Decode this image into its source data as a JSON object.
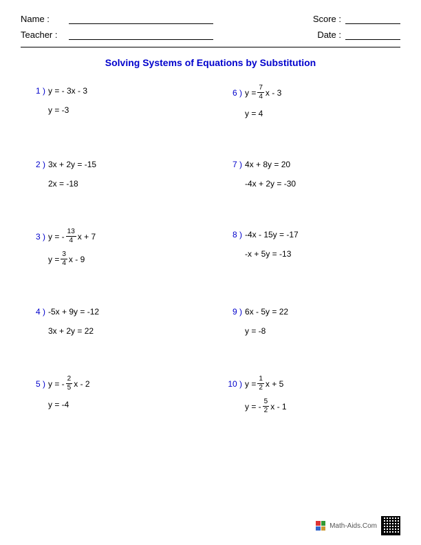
{
  "header": {
    "name_label": "Name :",
    "teacher_label": "Teacher :",
    "score_label": "Score :",
    "date_label": "Date :"
  },
  "title": "Solving Systems of Equations by Substitution",
  "problems": [
    {
      "num": "1 )",
      "eq1": [
        {
          "t": "y = - 3x - 3"
        }
      ],
      "eq2": [
        {
          "t": "y = -3"
        }
      ]
    },
    {
      "num": "6 )",
      "eq1": [
        {
          "t": "y = "
        },
        {
          "frac": [
            "7",
            "4"
          ]
        },
        {
          "t": "x - 3"
        }
      ],
      "eq2": [
        {
          "t": "y = 4"
        }
      ]
    },
    {
      "num": "2 )",
      "eq1": [
        {
          "t": "3x + 2y = -15"
        }
      ],
      "eq2": [
        {
          "t": "2x = -18"
        }
      ]
    },
    {
      "num": "7 )",
      "eq1": [
        {
          "t": "4x + 8y = 20"
        }
      ],
      "eq2": [
        {
          "t": "-4x + 2y = -30"
        }
      ]
    },
    {
      "num": "3 )",
      "eq1": [
        {
          "t": "y = - "
        },
        {
          "frac": [
            "13",
            "4"
          ]
        },
        {
          "t": "x + 7"
        }
      ],
      "eq2": [
        {
          "t": "y = "
        },
        {
          "frac": [
            "3",
            "4"
          ]
        },
        {
          "t": "x - 9"
        }
      ]
    },
    {
      "num": "8 )",
      "eq1": [
        {
          "t": "-4x - 15y = -17"
        }
      ],
      "eq2": [
        {
          "t": "-x + 5y = -13"
        }
      ]
    },
    {
      "num": "4 )",
      "eq1": [
        {
          "t": "-5x + 9y = -12"
        }
      ],
      "eq2": [
        {
          "t": "3x + 2y = 22"
        }
      ]
    },
    {
      "num": "9 )",
      "eq1": [
        {
          "t": "6x - 5y = 22"
        }
      ],
      "eq2": [
        {
          "t": "y = -8"
        }
      ]
    },
    {
      "num": "5 )",
      "eq1": [
        {
          "t": "y = - "
        },
        {
          "frac": [
            "2",
            "5"
          ]
        },
        {
          "t": "x - 2"
        }
      ],
      "eq2": [
        {
          "t": "y = -4"
        }
      ]
    },
    {
      "num": "10 )",
      "eq1": [
        {
          "t": "y = "
        },
        {
          "frac": [
            "1",
            "2"
          ]
        },
        {
          "t": "x + 5"
        }
      ],
      "eq2": [
        {
          "t": "y = - "
        },
        {
          "frac": [
            "5",
            "2"
          ]
        },
        {
          "t": "x - 1"
        }
      ]
    }
  ],
  "footer": {
    "brand": "Math-Aids.Com"
  },
  "colors": {
    "accent": "#0000cc",
    "text": "#000000",
    "background": "#ffffff"
  }
}
